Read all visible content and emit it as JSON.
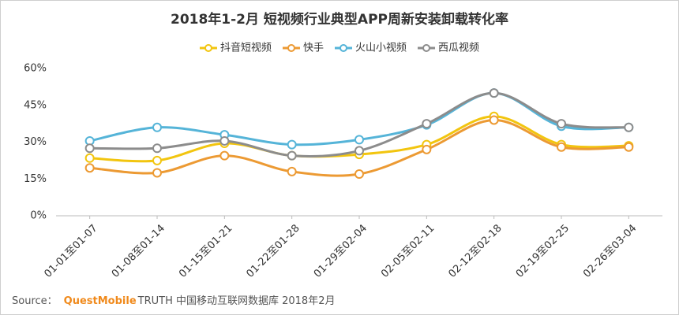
{
  "chart_data": {
    "type": "line",
    "title": "2018年1-2月 短视频行业典型APP周新安装卸载转化率",
    "categories": [
      "01-01至01-07",
      "01-08至01-14",
      "01-15至01-21",
      "01-22至01-28",
      "01-29至02-04",
      "02-05至02-11",
      "02-12至02-18",
      "02-19至02-25",
      "02-26至03-04"
    ],
    "series": [
      {
        "name": "抖音短视频",
        "color": "#f2c50f",
        "values": [
          23.5,
          22.5,
          29.5,
          24.5,
          25,
          29,
          40.5,
          29,
          28.5
        ]
      },
      {
        "name": "快手",
        "color": "#ec9a33",
        "values": [
          19.5,
          17.5,
          24.5,
          18,
          17,
          27,
          39,
          28,
          28
        ]
      },
      {
        "name": "火山小视频",
        "color": "#55b4d8",
        "values": [
          30.5,
          36,
          33,
          29,
          31,
          37,
          50,
          36.5,
          36
        ]
      },
      {
        "name": "西瓜视频",
        "color": "#8c8c8c",
        "values": [
          27.5,
          27.5,
          30.5,
          24.5,
          26.5,
          37.5,
          50,
          37.5,
          36
        ]
      }
    ],
    "ylim": [
      0,
      60
    ],
    "yticks": [
      {
        "value": 0,
        "label": "0%"
      },
      {
        "value": 15,
        "label": "15%"
      },
      {
        "value": 30,
        "label": "30%"
      },
      {
        "value": 45,
        "label": "45%"
      },
      {
        "value": 60,
        "label": "60%"
      }
    ],
    "grid": false,
    "legend": "top",
    "smooth": true
  },
  "source": {
    "prefix": "Source：",
    "brand": "QuestMobile",
    "text": "TRUTH 中国移动互联网数据库 2018年2月"
  }
}
